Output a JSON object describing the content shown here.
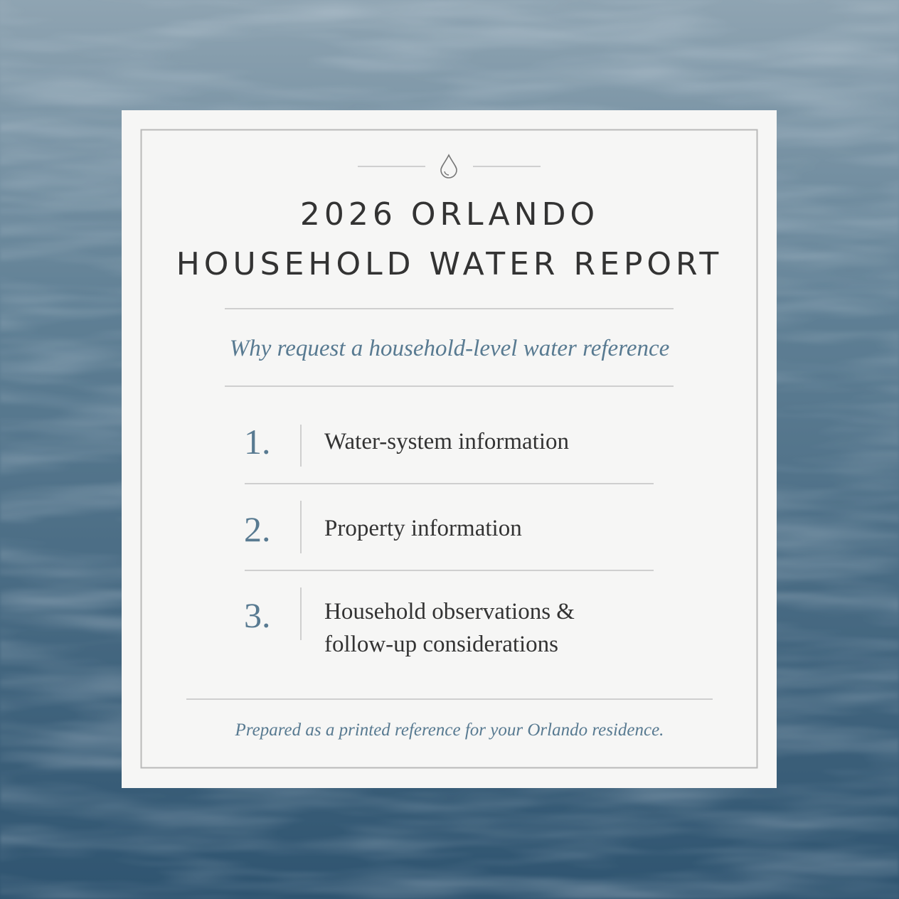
{
  "header": {
    "title_lines": [
      "2026 ORLANDO",
      "HOUSEHOLD WATER REPORT"
    ],
    "subtitle": "Why request a household-level water reference"
  },
  "items": [
    {
      "number": "1.",
      "text_lines": [
        "Water-system information"
      ]
    },
    {
      "number": "2.",
      "text_lines": [
        "Property information"
      ]
    },
    {
      "number": "3.",
      "text_lines": [
        "Household observations &",
        "follow-up considerations"
      ]
    }
  ],
  "footer": "Prepared as a printed reference for your Orlando residence."
}
